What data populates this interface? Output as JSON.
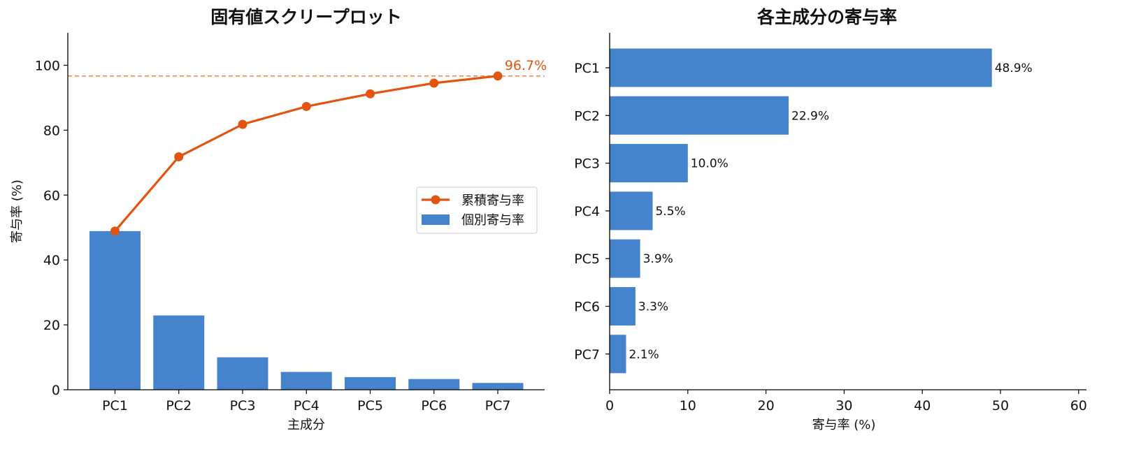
{
  "colors": {
    "bar": "#4583cd",
    "line": "#e2540f",
    "axis": "#000000",
    "reference": "#ef8a4a"
  },
  "chart_data": [
    {
      "type": "bar",
      "title": "固有値スクリープロット",
      "xlabel": "主成分",
      "ylabel": "寄与率 (%)",
      "categories": [
        "PC1",
        "PC2",
        "PC3",
        "PC4",
        "PC5",
        "PC6",
        "PC7"
      ],
      "series": [
        {
          "name": "個別寄与率",
          "kind": "bar",
          "values": [
            48.9,
            22.9,
            10.0,
            5.5,
            3.9,
            3.3,
            2.1
          ]
        },
        {
          "name": "累積寄与率",
          "kind": "line-with-markers",
          "values": [
            48.9,
            71.8,
            81.8,
            87.3,
            91.2,
            94.5,
            96.7
          ]
        }
      ],
      "reference_line": {
        "y": 96.7,
        "label": "96.7%",
        "style": "dashed"
      },
      "ylim": [
        0,
        110
      ],
      "yticks": [
        0,
        20,
        40,
        60,
        80,
        100
      ],
      "legend": "center-right",
      "grid": false
    },
    {
      "type": "bar",
      "orientation": "horizontal",
      "title": "各主成分の寄与率",
      "xlabel": "寄与率 (%)",
      "ylabel": "",
      "categories": [
        "PC1",
        "PC2",
        "PC3",
        "PC4",
        "PC5",
        "PC6",
        "PC7"
      ],
      "values": [
        48.9,
        22.9,
        10.0,
        5.5,
        3.9,
        3.3,
        2.1
      ],
      "data_labels": [
        "48.9%",
        "22.9%",
        "10.0%",
        "5.5%",
        "3.9%",
        "3.3%",
        "2.1%"
      ],
      "xlim": [
        0,
        61
      ],
      "xticks": [
        0,
        10,
        20,
        30,
        40,
        50,
        60
      ],
      "grid": false
    }
  ]
}
